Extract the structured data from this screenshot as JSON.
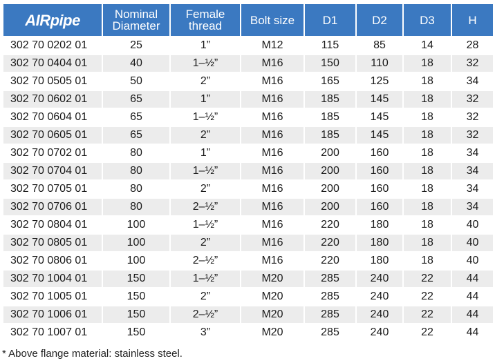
{
  "table": {
    "headers": [
      "AIRpipe",
      "Nominal Diameter",
      "Female thread",
      "Bolt size",
      "D1",
      "D2",
      "D3",
      "H"
    ],
    "rows": [
      [
        "302 70 0202 01",
        25,
        "1”",
        "M12",
        115,
        85,
        14,
        28
      ],
      [
        "302 70 0404 01",
        40,
        "1–½”",
        "M16",
        150,
        110,
        18,
        32
      ],
      [
        "302 70 0505 01",
        50,
        "2”",
        "M16",
        165,
        125,
        18,
        34
      ],
      [
        "302 70 0602 01",
        65,
        "1”",
        "M16",
        185,
        145,
        18,
        32
      ],
      [
        "302 70 0604 01",
        65,
        "1–½”",
        "M16",
        185,
        145,
        18,
        32
      ],
      [
        "302 70 0605 01",
        65,
        "2”",
        "M16",
        185,
        145,
        18,
        32
      ],
      [
        "302 70 0702 01",
        80,
        "1”",
        "M16",
        200,
        160,
        18,
        34
      ],
      [
        "302 70 0704 01",
        80,
        "1–½”",
        "M16",
        200,
        160,
        18,
        34
      ],
      [
        "302 70 0705 01",
        80,
        "2”",
        "M16",
        200,
        160,
        18,
        34
      ],
      [
        "302 70 0706 01",
        80,
        "2–½”",
        "M16",
        200,
        160,
        18,
        34
      ],
      [
        "302 70 0804 01",
        100,
        "1–½”",
        "M16",
        220,
        180,
        18,
        40
      ],
      [
        "302 70 0805 01",
        100,
        "2”",
        "M16",
        220,
        180,
        18,
        40
      ],
      [
        "302 70 0806 01",
        100,
        "2–½”",
        "M16",
        220,
        180,
        18,
        40
      ],
      [
        "302 70 1004 01",
        150,
        "1–½”",
        "M20",
        285,
        240,
        22,
        44
      ],
      [
        "302 70 1005 01",
        150,
        "2”",
        "M20",
        285,
        240,
        22,
        44
      ],
      [
        "302 70 1006 01",
        150,
        "2–½”",
        "M20",
        285,
        240,
        22,
        44
      ],
      [
        "302 70 1007 01",
        150,
        "3”",
        "M20",
        285,
        240,
        22,
        44
      ]
    ]
  },
  "footnote": "* Above flange material: stainless  steel."
}
